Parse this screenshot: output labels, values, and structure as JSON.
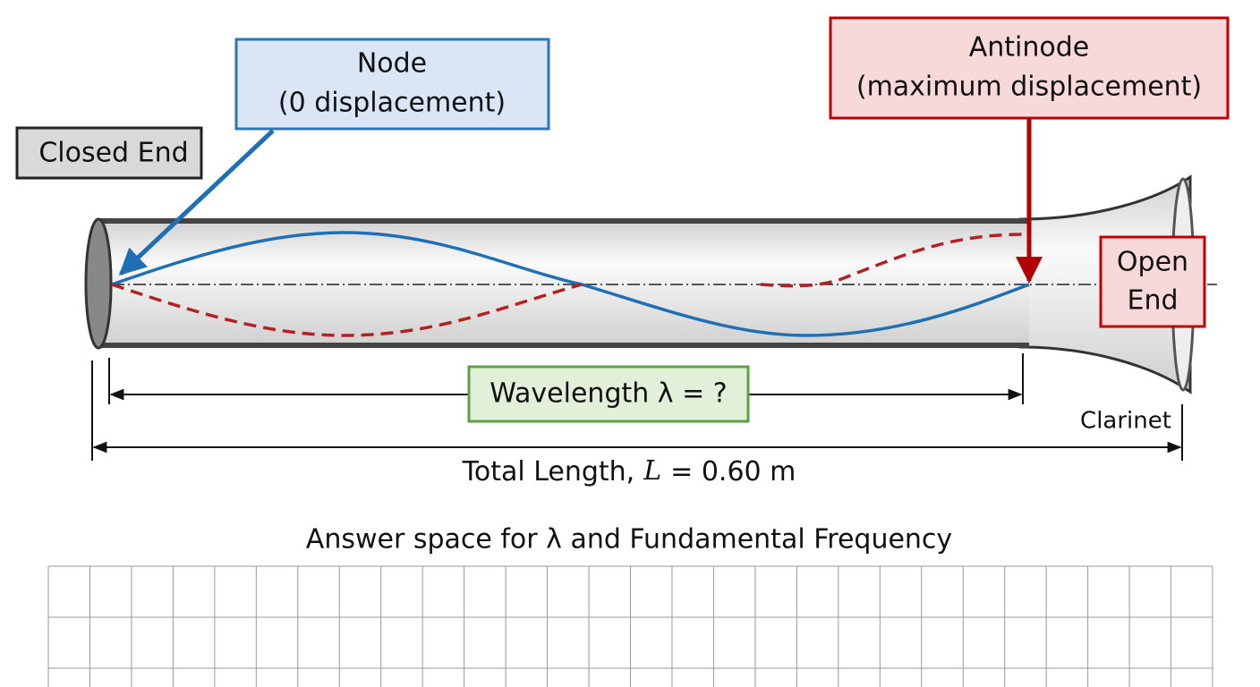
{
  "labels": {
    "node": [
      "Node",
      "(0 displacement)"
    ],
    "closed_end": "Closed End",
    "antinode": [
      "Antinode",
      "(maximum displacement)"
    ],
    "open_end": [
      "Open",
      "End"
    ],
    "wavelength": "Wavelength λ = ?",
    "instrument": "Clarinet",
    "total_length": {
      "prefix": "Total Length,",
      "variable": "L",
      "suffix": "= 0.60 m"
    }
  },
  "answer_space": {
    "title": "Answer space for λ and Fundamental Frequency"
  }
}
